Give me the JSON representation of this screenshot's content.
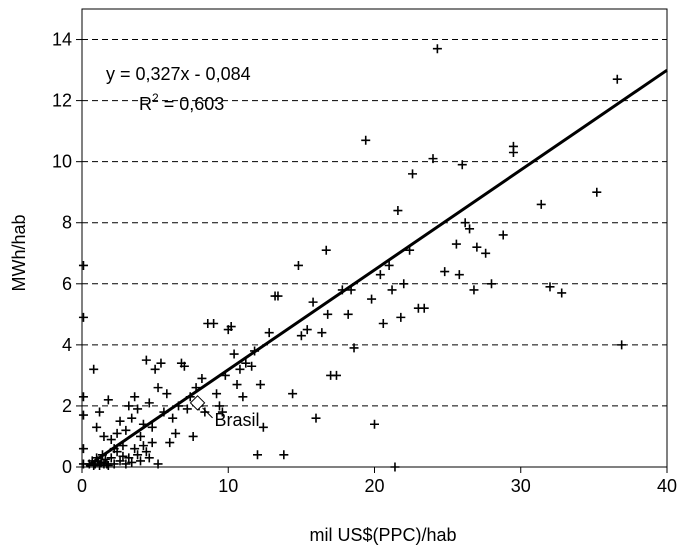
{
  "chart_data": {
    "type": "scatter",
    "title": "",
    "xlabel": "mil US$(PPC)/hab",
    "ylabel": "MWh/hab",
    "xlim": [
      0,
      40
    ],
    "ylim": [
      0,
      15
    ],
    "xticks": [
      "0",
      "10",
      "20",
      "30",
      "40"
    ],
    "yticks": [
      "0",
      "2",
      "4",
      "6",
      "8",
      "10",
      "12",
      "14"
    ],
    "grid": "horizontal dashed",
    "marker": "plus",
    "series": [
      {
        "points": [
          [
            0.1,
            6.6
          ],
          [
            0.1,
            4.9
          ],
          [
            0.1,
            2.3
          ],
          [
            0.1,
            1.7
          ],
          [
            0.1,
            0.6
          ],
          [
            0.1,
            0.1
          ],
          [
            0.5,
            0.1
          ],
          [
            0.7,
            0.2
          ],
          [
            0.8,
            0.05
          ],
          [
            0.9,
            0.1
          ],
          [
            1.0,
            0.3
          ],
          [
            1.1,
            0.2
          ],
          [
            1.2,
            0.05
          ],
          [
            1.3,
            0.15
          ],
          [
            1.4,
            0.4
          ],
          [
            1.5,
            0.1
          ],
          [
            1.6,
            0.25
          ],
          [
            1.7,
            0.1
          ],
          [
            1.8,
            0.05
          ],
          [
            2.0,
            0.3
          ],
          [
            2.2,
            0.1
          ],
          [
            2.4,
            0.5
          ],
          [
            2.6,
            0.2
          ],
          [
            2.8,
            0.35
          ],
          [
            3.0,
            0.1
          ],
          [
            3.2,
            0.3
          ],
          [
            3.4,
            0.15
          ],
          [
            3.6,
            0.6
          ],
          [
            3.8,
            0.4
          ],
          [
            4.0,
            0.2
          ],
          [
            4.2,
            0.7
          ],
          [
            4.4,
            0.5
          ],
          [
            4.6,
            0.3
          ],
          [
            4.8,
            0.8
          ],
          [
            5.2,
            0.1
          ],
          [
            0.8,
            3.2
          ],
          [
            1.0,
            1.3
          ],
          [
            1.2,
            1.8
          ],
          [
            1.5,
            1.0
          ],
          [
            1.8,
            2.2
          ],
          [
            2.0,
            0.9
          ],
          [
            2.2,
            0.6
          ],
          [
            2.4,
            1.1
          ],
          [
            2.6,
            1.5
          ],
          [
            2.8,
            0.7
          ],
          [
            3.0,
            1.2
          ],
          [
            3.2,
            2.0
          ],
          [
            3.4,
            1.6
          ],
          [
            3.6,
            2.3
          ],
          [
            3.8,
            1.9
          ],
          [
            4.0,
            1.0
          ],
          [
            4.2,
            1.4
          ],
          [
            4.4,
            3.5
          ],
          [
            4.6,
            2.1
          ],
          [
            4.8,
            1.3
          ],
          [
            5.0,
            3.2
          ],
          [
            5.2,
            2.6
          ],
          [
            5.4,
            3.4
          ],
          [
            5.6,
            1.8
          ],
          [
            5.8,
            2.4
          ],
          [
            6.0,
            0.8
          ],
          [
            6.2,
            1.6
          ],
          [
            6.4,
            1.1
          ],
          [
            6.6,
            2.0
          ],
          [
            6.8,
            3.4
          ],
          [
            7.0,
            3.3
          ],
          [
            7.2,
            1.9
          ],
          [
            7.4,
            2.3
          ],
          [
            7.6,
            1.0
          ],
          [
            7.8,
            2.6
          ],
          [
            8.0,
            2.0
          ],
          [
            8.2,
            2.9
          ],
          [
            8.4,
            1.8
          ],
          [
            8.6,
            4.7
          ],
          [
            9.0,
            4.7
          ],
          [
            9.2,
            2.4
          ],
          [
            9.4,
            2.0
          ],
          [
            9.6,
            1.8
          ],
          [
            9.8,
            3.0
          ],
          [
            10.0,
            4.5
          ],
          [
            10.2,
            4.6
          ],
          [
            10.4,
            3.7
          ],
          [
            10.6,
            2.7
          ],
          [
            10.8,
            3.2
          ],
          [
            11.0,
            2.3
          ],
          [
            11.2,
            3.4
          ],
          [
            11.6,
            3.3
          ],
          [
            11.8,
            3.8
          ],
          [
            12.0,
            0.4
          ],
          [
            12.2,
            2.7
          ],
          [
            12.4,
            1.3
          ],
          [
            12.8,
            4.4
          ],
          [
            13.2,
            5.6
          ],
          [
            13.4,
            5.6
          ],
          [
            13.8,
            0.4
          ],
          [
            14.4,
            2.4
          ],
          [
            14.8,
            6.6
          ],
          [
            15.0,
            4.3
          ],
          [
            15.4,
            4.5
          ],
          [
            15.8,
            5.4
          ],
          [
            16.0,
            1.6
          ],
          [
            16.4,
            4.4
          ],
          [
            16.7,
            7.1
          ],
          [
            16.8,
            5.0
          ],
          [
            17.0,
            3.0
          ],
          [
            17.4,
            3.0
          ],
          [
            17.8,
            5.8
          ],
          [
            18.2,
            5.0
          ],
          [
            18.4,
            5.8
          ],
          [
            18.6,
            3.9
          ],
          [
            19.4,
            10.7
          ],
          [
            19.8,
            5.5
          ],
          [
            20.0,
            1.4
          ],
          [
            20.4,
            6.3
          ],
          [
            20.6,
            4.7
          ],
          [
            21.0,
            6.6
          ],
          [
            21.2,
            5.8
          ],
          [
            21.4,
            0.0
          ],
          [
            21.6,
            8.4
          ],
          [
            21.8,
            4.9
          ],
          [
            22.0,
            6.0
          ],
          [
            22.4,
            7.1
          ],
          [
            22.6,
            9.6
          ],
          [
            23.0,
            5.2
          ],
          [
            23.4,
            5.2
          ],
          [
            24.0,
            10.1
          ],
          [
            24.3,
            13.7
          ],
          [
            24.8,
            6.4
          ],
          [
            25.6,
            7.3
          ],
          [
            25.8,
            6.3
          ],
          [
            26.0,
            9.9
          ],
          [
            26.2,
            8.0
          ],
          [
            26.5,
            7.8
          ],
          [
            26.8,
            5.8
          ],
          [
            27.0,
            7.2
          ],
          [
            27.6,
            7.0
          ],
          [
            28.0,
            6.0
          ],
          [
            28.8,
            7.6
          ],
          [
            29.5,
            10.5
          ],
          [
            29.5,
            10.3
          ],
          [
            31.4,
            8.6
          ],
          [
            32.0,
            5.9
          ],
          [
            32.8,
            5.7
          ],
          [
            35.2,
            9.0
          ],
          [
            36.6,
            12.7
          ],
          [
            36.9,
            4.0
          ]
        ]
      }
    ],
    "trendline": {
      "slope": 0.327,
      "intercept": -0.084,
      "xrange": [
        0.3,
        40
      ]
    },
    "annotations": {
      "equation": "y = 0,327x - 0,084",
      "r2_prefix": "R",
      "r2_sup": "2",
      "r2_value": " = 0,603",
      "highlight_label": "Brasil",
      "highlight_point": [
        7.9,
        2.1
      ]
    }
  }
}
